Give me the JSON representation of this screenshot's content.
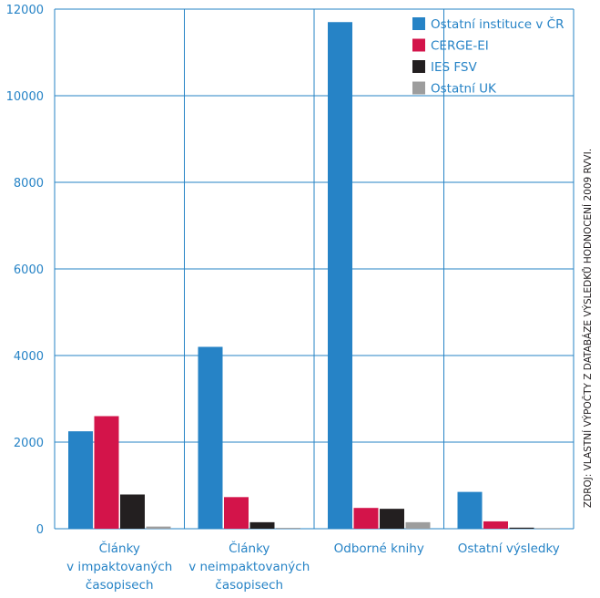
{
  "chart_data": {
    "type": "bar",
    "categories": [
      [
        "Články",
        "v impaktovaných",
        "časopisech"
      ],
      [
        "Články",
        "v neimpaktovaných",
        "časopisech"
      ],
      [
        "Odborné knihy"
      ],
      [
        "Ostatní výsledky"
      ]
    ],
    "series": [
      {
        "name": "Ostatní instituce v ČR",
        "color": "#2683c6",
        "values": [
          2250,
          4200,
          11700,
          850
        ]
      },
      {
        "name": "CERGE-EI",
        "color": "#d3144a",
        "values": [
          2600,
          730,
          480,
          170
        ]
      },
      {
        "name": "IES FSV",
        "color": "#231f20",
        "values": [
          790,
          150,
          460,
          25
        ]
      },
      {
        "name": "Ostatní UK",
        "color": "#9d9d9d",
        "values": [
          50,
          20,
          150,
          15
        ]
      }
    ],
    "ylim": [
      0,
      12000
    ],
    "yticks": [
      0,
      2000,
      4000,
      6000,
      8000,
      10000,
      12000
    ],
    "ytick_labels": [
      "0",
      "2000",
      "4000",
      "6000",
      "8000",
      "10000",
      "12000"
    ],
    "grid": true,
    "legend_position": "top-right",
    "source_note": "ZDROJ: VLASTNÍ VÝPOČTY Z DATABÁZE VÝSLEDKŮ HODNOCENÍ 2009 RVVI.",
    "colors": {
      "axis": "#2683c6",
      "text_axis": "#2683c6",
      "text_category": "#2683c6",
      "note": "#231f20"
    }
  }
}
